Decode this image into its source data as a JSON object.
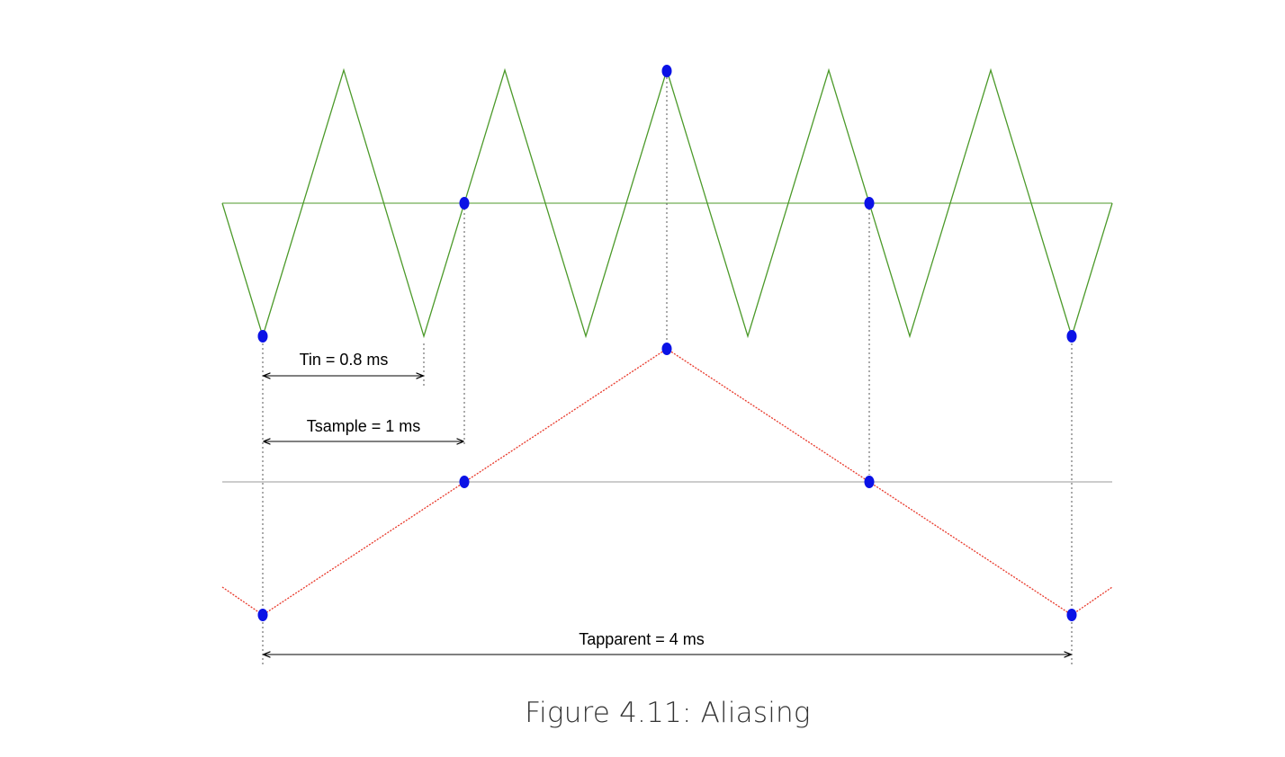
{
  "colors": {
    "input_signal": "#4c9a2a",
    "apparent_signal": "#e8382a",
    "sample_point": "#0b12e6",
    "axis_line": "#9a9a9a",
    "dim_line": "#000000"
  },
  "labels": {
    "tin": "Tin = 0.8 ms",
    "tsample": "Tsample = 1 ms",
    "tapparent": "Tapparent = 4 ms"
  },
  "caption": "Figure 4.11: Aliasing",
  "signal": {
    "input_period_ms": 0.8,
    "sample_period_ms": 1,
    "apparent_period_ms": 4,
    "sample_count": 5
  }
}
